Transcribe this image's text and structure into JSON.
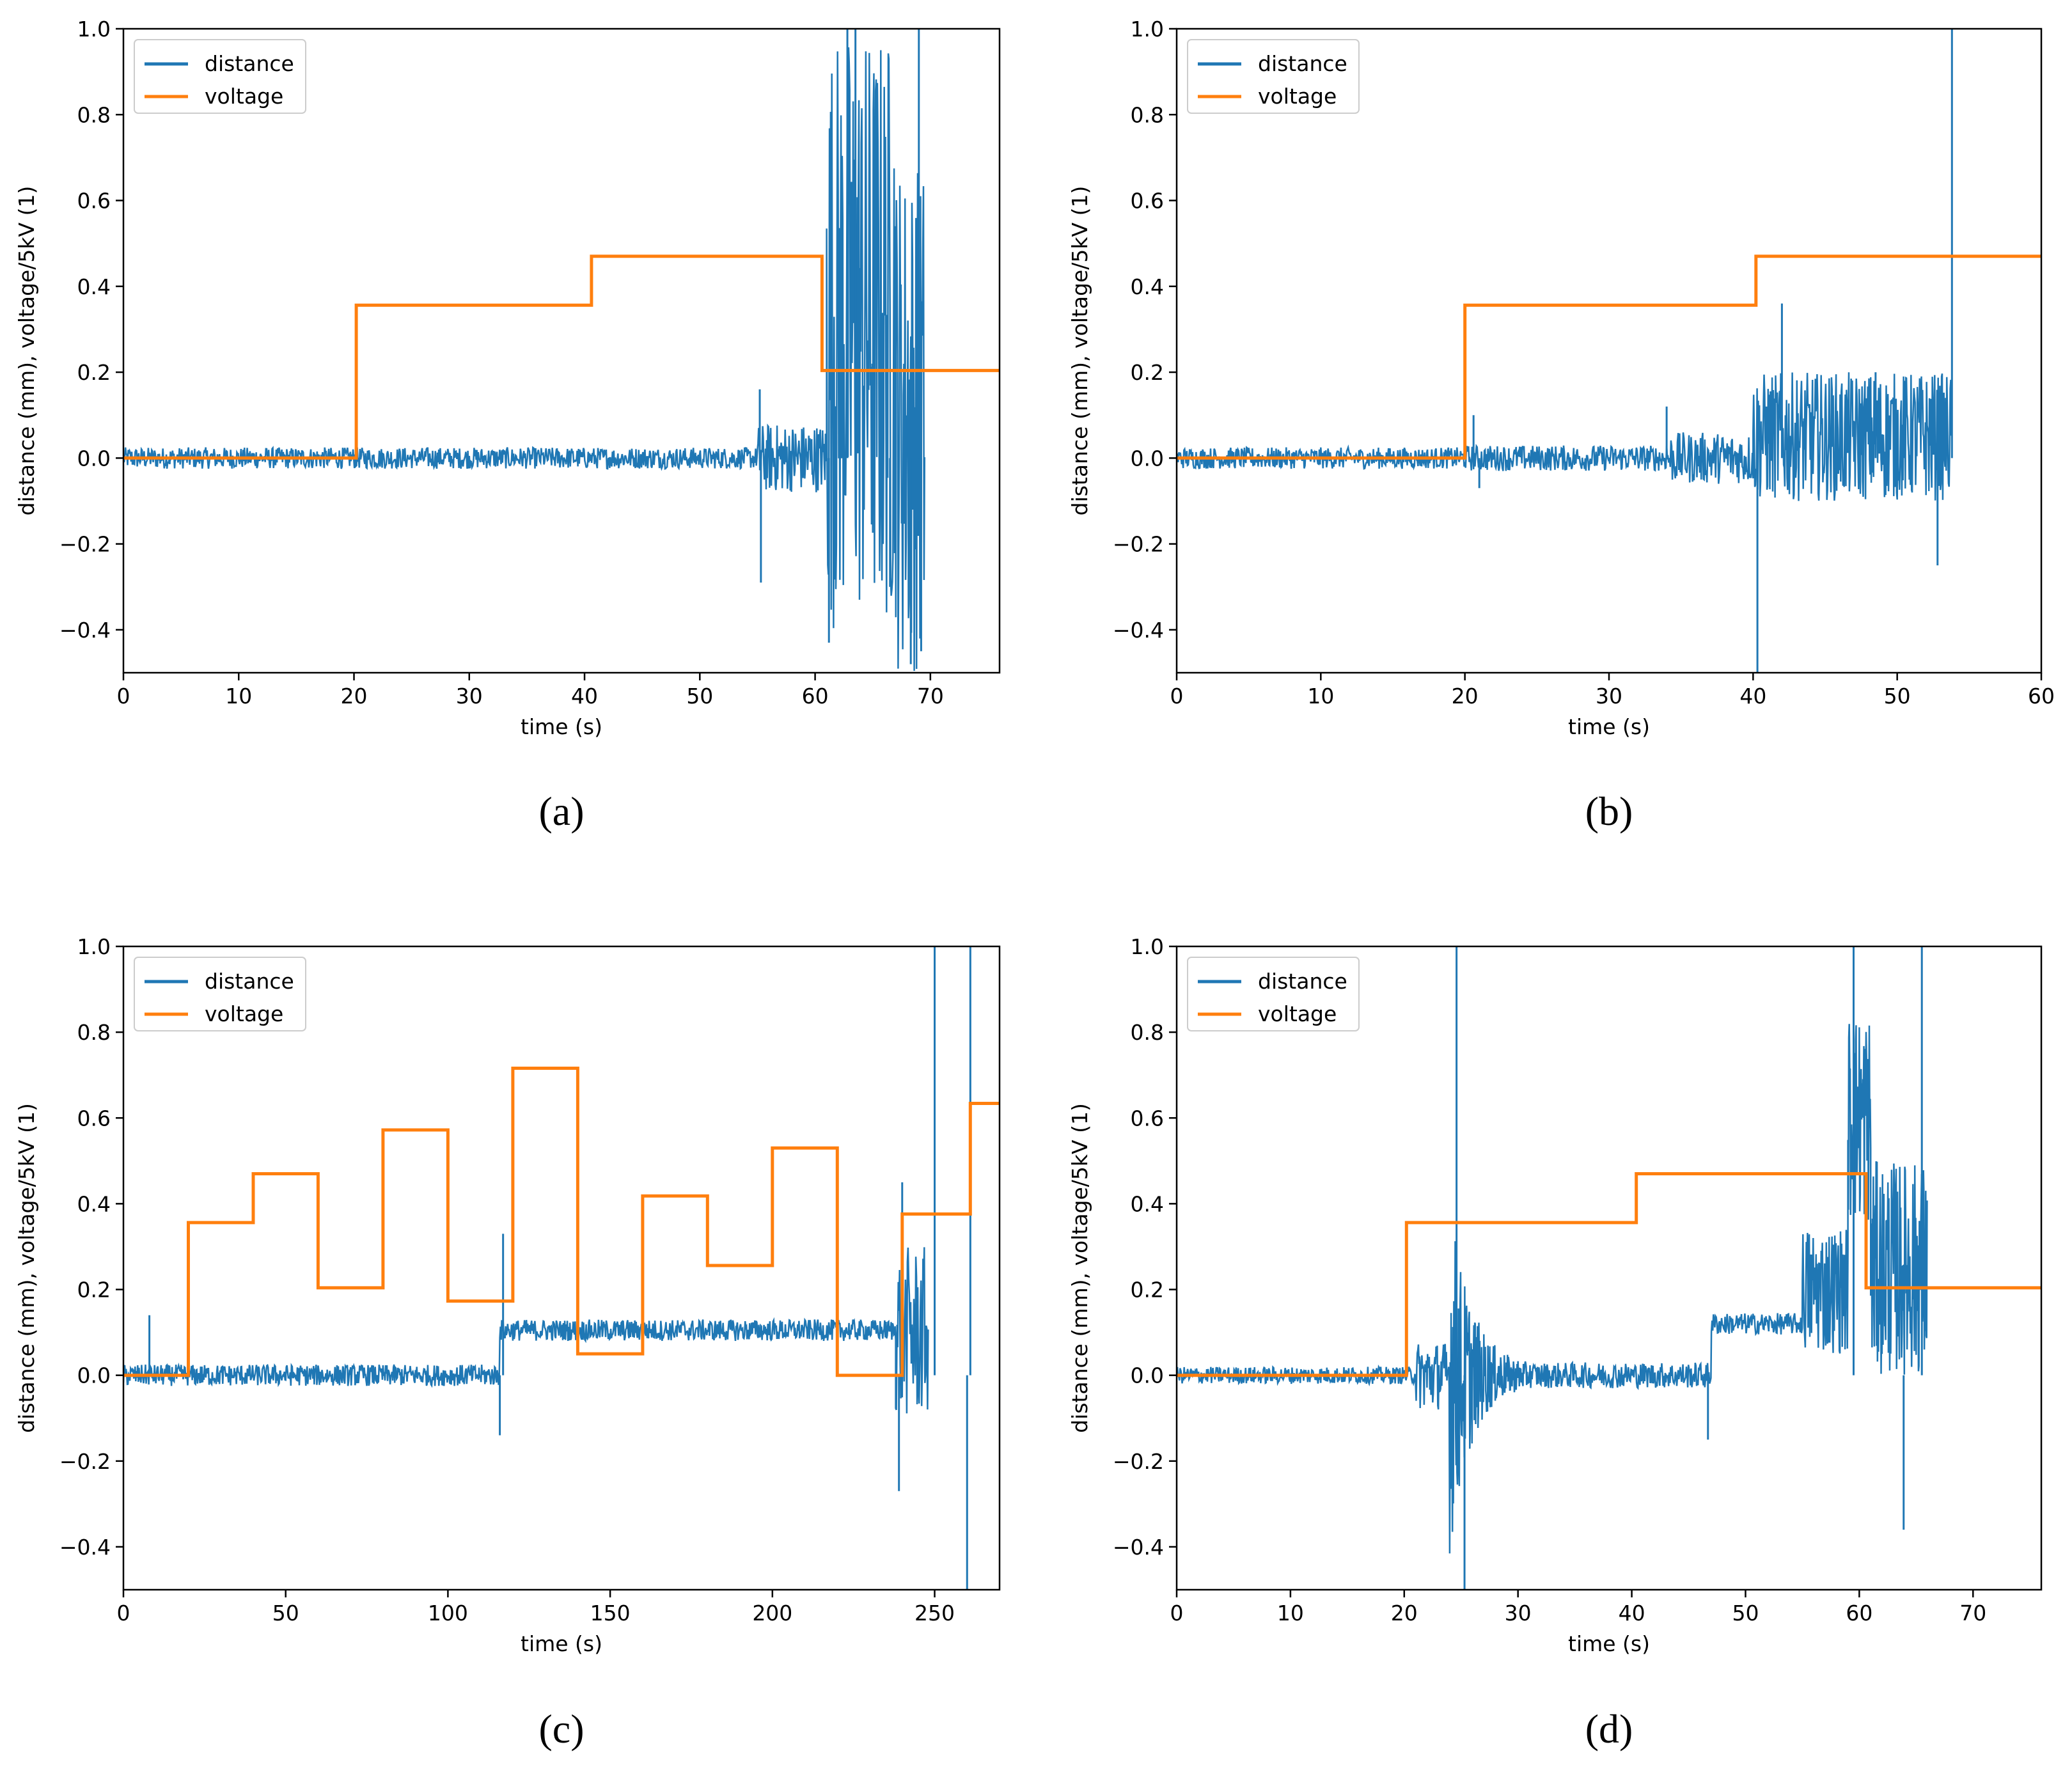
{
  "colors": {
    "distance": "#1f77b4",
    "voltage": "#ff7f0e",
    "axes": "#000000",
    "legend_border": "#cccccc"
  },
  "chart_data": [
    {
      "panel_label": "(a)",
      "type": "line",
      "xlabel": "time (s)",
      "ylabel": "distance (mm), voltage/5kV (1)",
      "xlim": [
        0,
        76
      ],
      "ylim": [
        -0.5,
        1.0
      ],
      "xticks": [
        0,
        10,
        20,
        30,
        40,
        50,
        60,
        70
      ],
      "xtick_labels": [
        "0",
        "10",
        "20",
        "30",
        "40",
        "50",
        "60",
        "70"
      ],
      "yticks": [
        -0.4,
        -0.2,
        0.0,
        0.2,
        0.4,
        0.6,
        0.8,
        1.0
      ],
      "ytick_labels": [
        "−0.4",
        "−0.2",
        "0.0",
        "0.2",
        "0.4",
        "0.6",
        "0.8",
        "1.0"
      ],
      "legend": [
        "distance",
        "voltage"
      ],
      "legend_loc": "upper-left",
      "series": [
        {
          "name": "distance",
          "noise_bands": [
            {
              "start": 0,
              "end": 55,
              "base": 0.0,
              "amp": 0.025,
              "step": 0.06
            },
            {
              "start": 55,
              "end": 61,
              "base": 0.0,
              "amp": 0.08,
              "step": 0.05
            },
            {
              "start": 61,
              "end": 67,
              "base": 0.3,
              "amp": 0.7,
              "step": 0.05
            },
            {
              "start": 67,
              "end": 69.5,
              "base": 0.1,
              "amp": 0.6,
              "step": 0.05
            }
          ],
          "spikes": [
            [
              55.2,
              0.16
            ],
            [
              55.3,
              -0.29
            ],
            [
              61.2,
              -0.43
            ],
            [
              62.8,
              1.0
            ],
            [
              63.5,
              1.0
            ],
            [
              66.5,
              -0.3
            ],
            [
              68.3,
              -0.48
            ],
            [
              69.0,
              1.0
            ],
            [
              69.2,
              -0.45
            ]
          ]
        },
        {
          "name": "voltage",
          "x": [
            0,
            20.2,
            20.2,
            40.6,
            40.6,
            60.6,
            60.6,
            76
          ],
          "y": [
            0.0,
            0.0,
            0.356,
            0.356,
            0.47,
            0.47,
            0.204,
            0.204
          ]
        }
      ]
    },
    {
      "panel_label": "(b)",
      "type": "line",
      "xlabel": "time (s)",
      "ylabel": "distance (mm), voltage/5kV (1)",
      "xlim": [
        0,
        60
      ],
      "ylim": [
        -0.5,
        1.0
      ],
      "xticks": [
        0,
        10,
        20,
        30,
        40,
        50,
        60
      ],
      "xtick_labels": [
        "0",
        "10",
        "20",
        "30",
        "40",
        "50",
        "60"
      ],
      "yticks": [
        -0.4,
        -0.2,
        0.0,
        0.2,
        0.4,
        0.6,
        0.8,
        1.0
      ],
      "ytick_labels": [
        "−0.4",
        "−0.2",
        "0.0",
        "0.2",
        "0.4",
        "0.6",
        "0.8",
        "1.0"
      ],
      "legend": [
        "distance",
        "voltage"
      ],
      "legend_loc": "upper-left",
      "series": [
        {
          "name": "distance",
          "noise_bands": [
            {
              "start": 0,
              "end": 20,
              "base": 0.0,
              "amp": 0.025,
              "step": 0.05
            },
            {
              "start": 20,
              "end": 34,
              "base": 0.0,
              "amp": 0.03,
              "step": 0.05
            },
            {
              "start": 34,
              "end": 40,
              "base": 0.0,
              "amp": 0.06,
              "step": 0.05
            },
            {
              "start": 40,
              "end": 53.8,
              "base": 0.05,
              "amp": 0.15,
              "step": 0.04
            }
          ],
          "spikes": [
            [
              20.6,
              0.1
            ],
            [
              21.0,
              -0.07
            ],
            [
              34.0,
              0.12
            ],
            [
              40.3,
              -0.5
            ],
            [
              42.0,
              0.36
            ],
            [
              48.5,
              0.2
            ],
            [
              50.5,
              0.18
            ],
            [
              52.8,
              -0.25
            ],
            [
              53.8,
              1.0
            ]
          ]
        },
        {
          "name": "voltage",
          "x": [
            0,
            20.0,
            20.0,
            40.2,
            40.2,
            60
          ],
          "y": [
            0.0,
            0.0,
            0.356,
            0.356,
            0.47,
            0.47
          ]
        }
      ]
    },
    {
      "panel_label": "(c)",
      "type": "line",
      "xlabel": "time (s)",
      "ylabel": "distance (mm), voltage/5kV (1)",
      "xlim": [
        0,
        270
      ],
      "ylim": [
        -0.5,
        1.0
      ],
      "xticks": [
        0,
        50,
        100,
        150,
        200,
        250
      ],
      "xtick_labels": [
        "0",
        "50",
        "100",
        "150",
        "200",
        "250"
      ],
      "yticks": [
        -0.4,
        -0.2,
        0.0,
        0.2,
        0.4,
        0.6,
        0.8,
        1.0
      ],
      "ytick_labels": [
        "−0.4",
        "−0.2",
        "0.0",
        "0.2",
        "0.4",
        "0.6",
        "0.8",
        "1.0"
      ],
      "legend": [
        "distance",
        "voltage"
      ],
      "legend_loc": "upper-left",
      "series": [
        {
          "name": "distance",
          "noise_bands": [
            {
              "start": 0,
              "end": 116,
              "base": 0.0,
              "amp": 0.025,
              "step": 0.2
            },
            {
              "start": 116,
              "end": 238,
              "base": 0.105,
              "amp": 0.025,
              "step": 0.2
            },
            {
              "start": 238,
              "end": 248,
              "base": 0.1,
              "amp": 0.2,
              "step": 0.2
            }
          ],
          "spikes": [
            [
              8,
              0.14
            ],
            [
              116,
              -0.14
            ],
            [
              117,
              0.33
            ],
            [
              239,
              -0.27
            ],
            [
              240,
              0.45
            ],
            [
              250,
              1.0
            ],
            [
              260,
              -0.5
            ],
            [
              261,
              1.0
            ]
          ]
        },
        {
          "name": "voltage",
          "x": [
            0,
            20,
            20,
            40,
            40,
            60,
            60,
            80,
            80,
            100,
            100,
            120,
            120,
            140,
            140,
            160,
            160,
            180,
            180,
            200,
            200,
            220,
            220,
            240,
            240,
            261,
            261,
            270
          ],
          "y": [
            0.0,
            0.0,
            0.356,
            0.356,
            0.47,
            0.47,
            0.204,
            0.204,
            0.572,
            0.572,
            0.173,
            0.173,
            0.716,
            0.716,
            0.05,
            0.05,
            0.418,
            0.418,
            0.256,
            0.256,
            0.53,
            0.53,
            0.0,
            0.0,
            0.376,
            0.376,
            0.634,
            0.634
          ]
        }
      ]
    },
    {
      "panel_label": "(d)",
      "type": "line",
      "xlabel": "time (s)",
      "ylabel": "distance (mm), voltage/5kV (1)",
      "xlim": [
        0,
        76
      ],
      "ylim": [
        -0.5,
        1.0
      ],
      "xticks": [
        0,
        10,
        20,
        30,
        40,
        50,
        60,
        70
      ],
      "xtick_labels": [
        "0",
        "10",
        "20",
        "30",
        "40",
        "50",
        "60",
        "70"
      ],
      "yticks": [
        -0.4,
        -0.2,
        0.0,
        0.2,
        0.4,
        0.6,
        0.8,
        1.0
      ],
      "ytick_labels": [
        "−0.4",
        "−0.2",
        "0.0",
        "0.2",
        "0.4",
        "0.6",
        "0.8",
        "1.0"
      ],
      "legend": [
        "distance",
        "voltage"
      ],
      "legend_loc": "upper-left",
      "series": [
        {
          "name": "distance",
          "noise_bands": [
            {
              "start": 0,
              "end": 21,
              "base": 0.0,
              "amp": 0.02,
              "step": 0.06
            },
            {
              "start": 21,
              "end": 24,
              "base": 0.0,
              "amp": 0.08,
              "step": 0.05
            },
            {
              "start": 24,
              "end": 31,
              "base": 0.0,
              "amp": 0.4,
              "decay": 0.6,
              "step": 0.04
            },
            {
              "start": 31,
              "end": 47,
              "base": 0.0,
              "amp": 0.03,
              "step": 0.06
            },
            {
              "start": 47,
              "end": 55,
              "base": 0.12,
              "amp": 0.025,
              "step": 0.06
            },
            {
              "start": 55,
              "end": 59,
              "base": 0.2,
              "amp": 0.15,
              "step": 0.05
            },
            {
              "start": 59,
              "end": 61,
              "base": 0.6,
              "amp": 0.25,
              "step": 0.04
            },
            {
              "start": 61,
              "end": 66,
              "base": 0.25,
              "amp": 0.25,
              "step": 0.04
            }
          ],
          "spikes": [
            [
              24.6,
              1.0
            ],
            [
              25.3,
              -0.5
            ],
            [
              46.7,
              -0.15
            ],
            [
              59.5,
              1.0
            ],
            [
              63.9,
              -0.36
            ],
            [
              65.5,
              1.0
            ]
          ]
        },
        {
          "name": "voltage",
          "x": [
            0,
            20.2,
            20.2,
            40.4,
            40.4,
            60.6,
            60.6,
            76
          ],
          "y": [
            0.0,
            0.0,
            0.356,
            0.356,
            0.47,
            0.47,
            0.204,
            0.204
          ]
        }
      ]
    }
  ]
}
